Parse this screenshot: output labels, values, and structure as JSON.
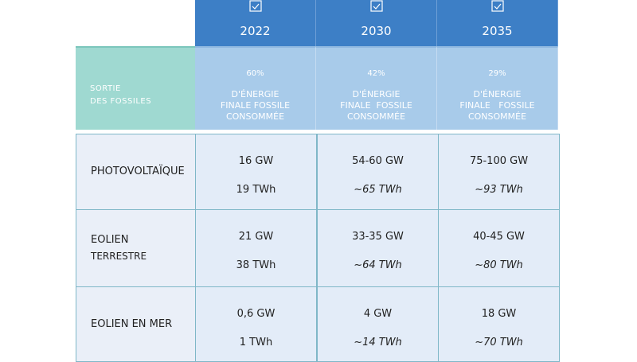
{
  "header": {
    "years": [
      "2022",
      "2030",
      "2035"
    ]
  },
  "fossil": {
    "label_lines": [
      "SORTIE",
      "DES FOSSILES"
    ],
    "values": [
      {
        "percent": "60%",
        "lines": [
          "D'ÉNERGIE",
          "FINALE FOSSILE",
          "CONSOMMÉE"
        ]
      },
      {
        "percent": "42%",
        "lines": [
          "D'ÉNERGIE",
          "FINALE  FOSSILE",
          "CONSOMMÉE"
        ]
      },
      {
        "percent": "29%",
        "lines": [
          "D'ÉNERGIE",
          "FINALE   FOSSILE",
          "CONSOMMÉE"
        ]
      }
    ]
  },
  "rows": [
    {
      "label_lines": [
        "PHOTOVOLTAÏQUE"
      ],
      "cells": [
        [
          "16 GW",
          "19 TWh"
        ],
        [
          "54-60 GW",
          "~65 TWh"
        ],
        [
          "75-100 GW",
          "~93 TWh"
        ]
      ]
    },
    {
      "label_lines": [
        "EOLIEN",
        "TERRESTRE"
      ],
      "cells": [
        [
          "21 GW",
          "38 TWh"
        ],
        [
          "33-35 GW",
          "~64 TWh"
        ],
        [
          "40-45 GW",
          "~80 TWh"
        ]
      ]
    },
    {
      "label_lines": [
        "EOLIEN EN MER"
      ],
      "cells": [
        [
          "0,6 GW",
          "1 TWh"
        ],
        [
          "4 GW",
          "~14 TWh"
        ],
        [
          "18 GW",
          "~70 TWh"
        ]
      ]
    }
  ]
}
